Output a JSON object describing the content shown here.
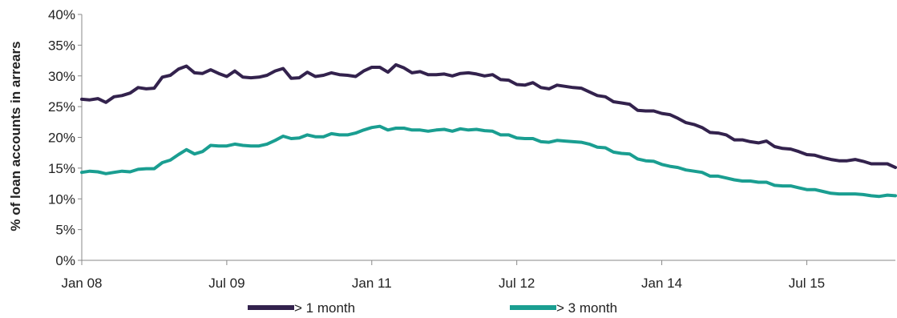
{
  "chart_data": {
    "type": "line",
    "xlabel": "",
    "ylabel": "% of loan accounts in arrears",
    "x_ticks": [
      "Jan 08",
      "Jul 09",
      "Jan 11",
      "Jul 12",
      "Jan 14",
      "Jul 15"
    ],
    "y_ticks": [
      "0%",
      "5%",
      "10%",
      "15%",
      "20%",
      "25%",
      "30%",
      "35%",
      "40%"
    ],
    "ylim": [
      0,
      40
    ],
    "x_range": [
      "Jan 08",
      "Jun 16"
    ],
    "grid": false,
    "legend_position": "bottom",
    "series": [
      {
        "name": "> 1 month",
        "color": "#33224d",
        "points": [
          [
            "Jan 08",
            26.2
          ],
          [
            "Feb 08",
            26.1
          ],
          [
            "Mar 08",
            26.3
          ],
          [
            "Apr 08",
            25.7
          ],
          [
            "May 08",
            26.6
          ],
          [
            "Jun 08",
            26.8
          ],
          [
            "Jul 08",
            27.2
          ],
          [
            "Aug 08",
            28.1
          ],
          [
            "Sep 08",
            27.9
          ],
          [
            "Oct 08",
            28.0
          ],
          [
            "Nov 08",
            29.8
          ],
          [
            "Dec 08",
            30.1
          ],
          [
            "Jan 09",
            31.1
          ],
          [
            "Feb 09",
            31.6
          ],
          [
            "Mar 09",
            30.5
          ],
          [
            "Apr 09",
            30.4
          ],
          [
            "May 09",
            31.0
          ],
          [
            "Jun 09",
            30.4
          ],
          [
            "Jul 09",
            29.9
          ],
          [
            "Aug 09",
            30.8
          ],
          [
            "Sep 09",
            29.8
          ],
          [
            "Oct 09",
            29.7
          ],
          [
            "Nov 09",
            29.8
          ],
          [
            "Dec 09",
            30.1
          ],
          [
            "Jan 10",
            30.8
          ],
          [
            "Feb 10",
            31.2
          ],
          [
            "Mar 10",
            29.6
          ],
          [
            "Apr 10",
            29.7
          ],
          [
            "May 10",
            30.6
          ],
          [
            "Jun 10",
            29.9
          ],
          [
            "Jul 10",
            30.1
          ],
          [
            "Aug 10",
            30.5
          ],
          [
            "Sep 10",
            30.2
          ],
          [
            "Oct 10",
            30.1
          ],
          [
            "Nov 10",
            29.9
          ],
          [
            "Dec 10",
            30.8
          ],
          [
            "Jan 11",
            31.4
          ],
          [
            "Feb 11",
            31.4
          ],
          [
            "Mar 11",
            30.6
          ],
          [
            "Apr 11",
            31.8
          ],
          [
            "May 11",
            31.3
          ],
          [
            "Jun 11",
            30.5
          ],
          [
            "Jul 11",
            30.7
          ],
          [
            "Aug 11",
            30.2
          ],
          [
            "Sep 11",
            30.2
          ],
          [
            "Oct 11",
            30.3
          ],
          [
            "Nov 11",
            30.0
          ],
          [
            "Dec 11",
            30.4
          ],
          [
            "Jan 12",
            30.5
          ],
          [
            "Feb 12",
            30.3
          ],
          [
            "Mar 12",
            30.0
          ],
          [
            "Apr 12",
            30.2
          ],
          [
            "May 12",
            29.4
          ],
          [
            "Jun 12",
            29.3
          ],
          [
            "Jul 12",
            28.6
          ],
          [
            "Aug 12",
            28.5
          ],
          [
            "Sep 12",
            28.9
          ],
          [
            "Oct 12",
            28.1
          ],
          [
            "Nov 12",
            27.9
          ],
          [
            "Dec 12",
            28.5
          ],
          [
            "Jan 13",
            28.3
          ],
          [
            "Feb 13",
            28.1
          ],
          [
            "Mar 13",
            28.0
          ],
          [
            "Apr 13",
            27.4
          ],
          [
            "May 13",
            26.8
          ],
          [
            "Jun 13",
            26.6
          ],
          [
            "Jul 13",
            25.8
          ],
          [
            "Aug 13",
            25.6
          ],
          [
            "Sep 13",
            25.4
          ],
          [
            "Oct 13",
            24.4
          ],
          [
            "Nov 13",
            24.3
          ],
          [
            "Dec 13",
            24.3
          ],
          [
            "Jan 14",
            23.9
          ],
          [
            "Feb 14",
            23.7
          ],
          [
            "Mar 14",
            23.1
          ],
          [
            "Apr 14",
            22.4
          ],
          [
            "May 14",
            22.1
          ],
          [
            "Jun 14",
            21.6
          ],
          [
            "Jul 14",
            20.8
          ],
          [
            "Aug 14",
            20.7
          ],
          [
            "Sep 14",
            20.4
          ],
          [
            "Oct 14",
            19.6
          ],
          [
            "Nov 14",
            19.6
          ],
          [
            "Dec 14",
            19.3
          ],
          [
            "Jan 15",
            19.1
          ],
          [
            "Feb 15",
            19.4
          ],
          [
            "Mar 15",
            18.5
          ],
          [
            "Apr 15",
            18.2
          ],
          [
            "May 15",
            18.1
          ],
          [
            "Jun 15",
            17.7
          ],
          [
            "Jul 15",
            17.2
          ],
          [
            "Aug 15",
            17.1
          ],
          [
            "Sep 15",
            16.7
          ],
          [
            "Oct 15",
            16.4
          ],
          [
            "Nov 15",
            16.2
          ],
          [
            "Dec 15",
            16.2
          ],
          [
            "Jan 16",
            16.4
          ],
          [
            "Feb 16",
            16.1
          ],
          [
            "Mar 16",
            15.7
          ],
          [
            "Apr 16",
            15.7
          ],
          [
            "May 16",
            15.7
          ],
          [
            "Jun 16",
            15.1
          ]
        ]
      },
      {
        "name": "> 3 month",
        "color": "#1a9e91",
        "points": [
          [
            "Jan 08",
            14.3
          ],
          [
            "Feb 08",
            14.5
          ],
          [
            "Mar 08",
            14.4
          ],
          [
            "Apr 08",
            14.1
          ],
          [
            "May 08",
            14.3
          ],
          [
            "Jun 08",
            14.5
          ],
          [
            "Jul 08",
            14.4
          ],
          [
            "Aug 08",
            14.8
          ],
          [
            "Sep 08",
            14.9
          ],
          [
            "Oct 08",
            14.9
          ],
          [
            "Nov 08",
            15.9
          ],
          [
            "Dec 08",
            16.3
          ],
          [
            "Jan 09",
            17.2
          ],
          [
            "Feb 09",
            18.0
          ],
          [
            "Mar 09",
            17.3
          ],
          [
            "Apr 09",
            17.7
          ],
          [
            "May 09",
            18.7
          ],
          [
            "Jun 09",
            18.6
          ],
          [
            "Jul 09",
            18.6
          ],
          [
            "Aug 09",
            18.9
          ],
          [
            "Sep 09",
            18.7
          ],
          [
            "Oct 09",
            18.6
          ],
          [
            "Nov 09",
            18.6
          ],
          [
            "Dec 09",
            18.9
          ],
          [
            "Jan 10",
            19.5
          ],
          [
            "Feb 10",
            20.2
          ],
          [
            "Mar 10",
            19.8
          ],
          [
            "Apr 10",
            19.9
          ],
          [
            "May 10",
            20.4
          ],
          [
            "Jun 10",
            20.1
          ],
          [
            "Jul 10",
            20.1
          ],
          [
            "Aug 10",
            20.6
          ],
          [
            "Sep 10",
            20.4
          ],
          [
            "Oct 10",
            20.4
          ],
          [
            "Nov 10",
            20.7
          ],
          [
            "Dec 10",
            21.2
          ],
          [
            "Jan 11",
            21.6
          ],
          [
            "Feb 11",
            21.8
          ],
          [
            "Mar 11",
            21.2
          ],
          [
            "Apr 11",
            21.5
          ],
          [
            "May 11",
            21.5
          ],
          [
            "Jun 11",
            21.2
          ],
          [
            "Jul 11",
            21.2
          ],
          [
            "Aug 11",
            21.0
          ],
          [
            "Sep 11",
            21.2
          ],
          [
            "Oct 11",
            21.3
          ],
          [
            "Nov 11",
            21.0
          ],
          [
            "Dec 11",
            21.4
          ],
          [
            "Jan 12",
            21.2
          ],
          [
            "Feb 12",
            21.3
          ],
          [
            "Mar 12",
            21.1
          ],
          [
            "Apr 12",
            21.0
          ],
          [
            "May 12",
            20.4
          ],
          [
            "Jun 12",
            20.4
          ],
          [
            "Jul 12",
            19.9
          ],
          [
            "Aug 12",
            19.8
          ],
          [
            "Sep 12",
            19.8
          ],
          [
            "Oct 12",
            19.3
          ],
          [
            "Nov 12",
            19.2
          ],
          [
            "Dec 12",
            19.5
          ],
          [
            "Jan 13",
            19.4
          ],
          [
            "Feb 13",
            19.3
          ],
          [
            "Mar 13",
            19.2
          ],
          [
            "Apr 13",
            18.9
          ],
          [
            "May 13",
            18.4
          ],
          [
            "Jun 13",
            18.3
          ],
          [
            "Jul 13",
            17.6
          ],
          [
            "Aug 13",
            17.4
          ],
          [
            "Sep 13",
            17.3
          ],
          [
            "Oct 13",
            16.5
          ],
          [
            "Nov 13",
            16.2
          ],
          [
            "Dec 13",
            16.1
          ],
          [
            "Jan 14",
            15.6
          ],
          [
            "Feb 14",
            15.3
          ],
          [
            "Mar 14",
            15.1
          ],
          [
            "Apr 14",
            14.7
          ],
          [
            "May 14",
            14.5
          ],
          [
            "Jun 14",
            14.3
          ],
          [
            "Jul 14",
            13.7
          ],
          [
            "Aug 14",
            13.7
          ],
          [
            "Sep 14",
            13.4
          ],
          [
            "Oct 14",
            13.1
          ],
          [
            "Nov 14",
            12.9
          ],
          [
            "Dec 14",
            12.9
          ],
          [
            "Jan 15",
            12.7
          ],
          [
            "Feb 15",
            12.7
          ],
          [
            "Mar 15",
            12.2
          ],
          [
            "Apr 15",
            12.1
          ],
          [
            "May 15",
            12.1
          ],
          [
            "Jun 15",
            11.8
          ],
          [
            "Jul 15",
            11.5
          ],
          [
            "Aug 15",
            11.5
          ],
          [
            "Sep 15",
            11.2
          ],
          [
            "Oct 15",
            10.9
          ],
          [
            "Nov 15",
            10.8
          ],
          [
            "Dec 15",
            10.8
          ],
          [
            "Jan 16",
            10.8
          ],
          [
            "Feb 16",
            10.7
          ],
          [
            "Mar 16",
            10.5
          ],
          [
            "Apr 16",
            10.4
          ],
          [
            "May 16",
            10.6
          ],
          [
            "Jun 16",
            10.5
          ]
        ]
      }
    ]
  }
}
